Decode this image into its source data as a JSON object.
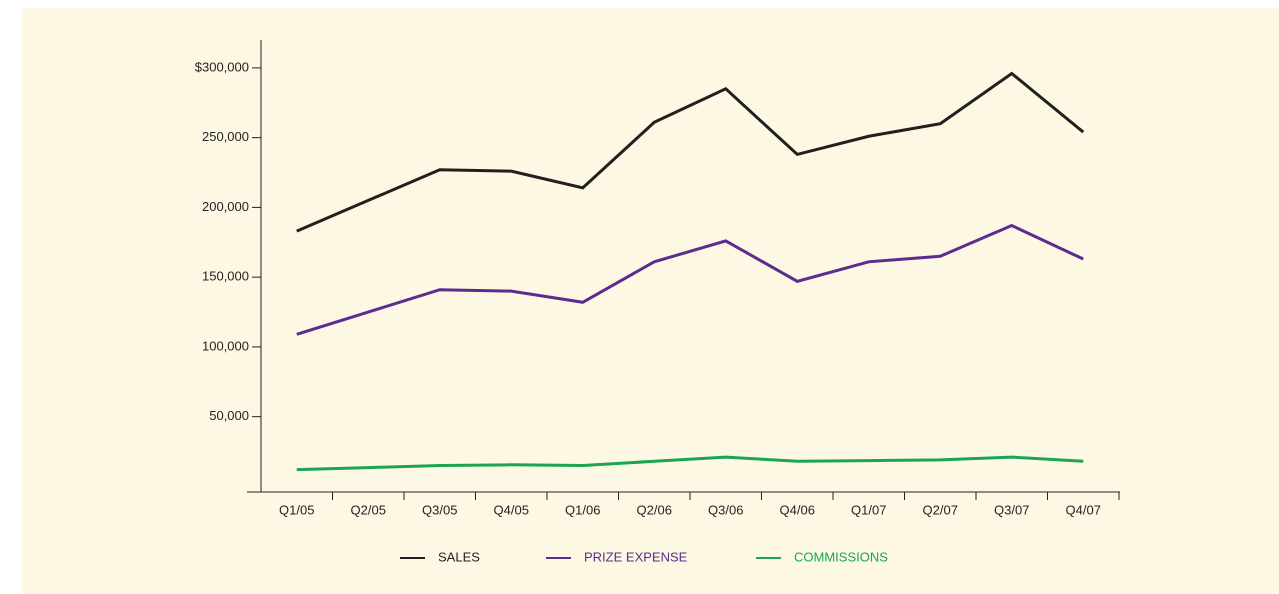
{
  "chart_data": {
    "type": "line",
    "categories": [
      "Q1/05",
      "Q2/05",
      "Q3/05",
      "Q4/05",
      "Q1/06",
      "Q2/06",
      "Q3/06",
      "Q4/06",
      "Q1/07",
      "Q2/07",
      "Q3/07",
      "Q4/07"
    ],
    "series": [
      {
        "name": "SALES",
        "color": "#231f20",
        "values": [
          183000,
          205000,
          227000,
          226000,
          214000,
          261000,
          285000,
          238000,
          251000,
          260000,
          296000,
          254000
        ]
      },
      {
        "name": "PRIZE EXPENSE",
        "color": "#5b2d8e",
        "values": [
          109000,
          125000,
          141000,
          140000,
          132000,
          161000,
          176000,
          147000,
          161000,
          165000,
          187000,
          163000
        ]
      },
      {
        "name": "COMMISSIONS",
        "color": "#1aa550",
        "values": [
          12000,
          13500,
          15000,
          15500,
          15000,
          18000,
          21000,
          18000,
          18500,
          19000,
          21000,
          18000
        ]
      }
    ],
    "ylim": [
      -4000,
      320000
    ],
    "yticks": [
      {
        "value": 50000,
        "label": "50,000"
      },
      {
        "value": 100000,
        "label": "100,000"
      },
      {
        "value": 150000,
        "label": "150,000"
      },
      {
        "value": 200000,
        "label": "200,000"
      },
      {
        "value": 250000,
        "label": "250,000"
      },
      {
        "value": 300000,
        "label": "$300,000"
      }
    ]
  }
}
